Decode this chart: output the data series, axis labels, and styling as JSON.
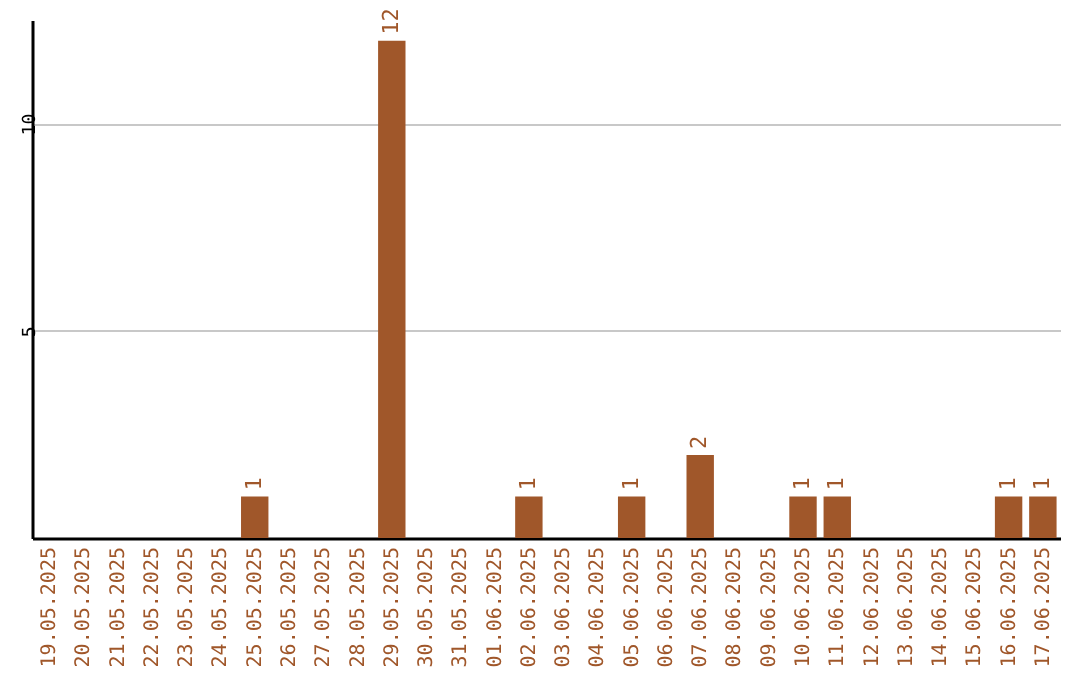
{
  "chart_data": {
    "type": "bar",
    "categories": [
      "19.05.2025",
      "20.05.2025",
      "21.05.2025",
      "22.05.2025",
      "23.05.2025",
      "24.05.2025",
      "25.05.2025",
      "26.05.2025",
      "27.05.2025",
      "28.05.2025",
      "29.05.2025",
      "30.05.2025",
      "31.05.2025",
      "01.06.2025",
      "02.06.2025",
      "03.06.2025",
      "04.06.2025",
      "05.06.2025",
      "06.06.2025",
      "07.06.2025",
      "08.06.2025",
      "09.06.2025",
      "10.06.2025",
      "11.06.2025",
      "12.06.2025",
      "13.06.2025",
      "14.06.2025",
      "15.06.2025",
      "16.06.2025",
      "17.06.2025"
    ],
    "values": [
      0,
      0,
      0,
      0,
      0,
      0,
      1,
      0,
      0,
      0,
      12,
      0,
      0,
      0,
      1,
      0,
      0,
      1,
      0,
      2,
      0,
      0,
      1,
      1,
      0,
      0,
      0,
      0,
      1,
      1
    ],
    "value_labels": [
      null,
      null,
      null,
      null,
      null,
      null,
      "1",
      null,
      null,
      null,
      "12",
      null,
      null,
      null,
      "1",
      null,
      null,
      "1",
      null,
      "2",
      null,
      null,
      "1",
      "1",
      null,
      null,
      null,
      null,
      "1",
      "1"
    ],
    "color": "#a0572a",
    "ylim": [
      0,
      12.5
    ],
    "yticks": [
      5,
      10
    ],
    "grid": "y"
  }
}
